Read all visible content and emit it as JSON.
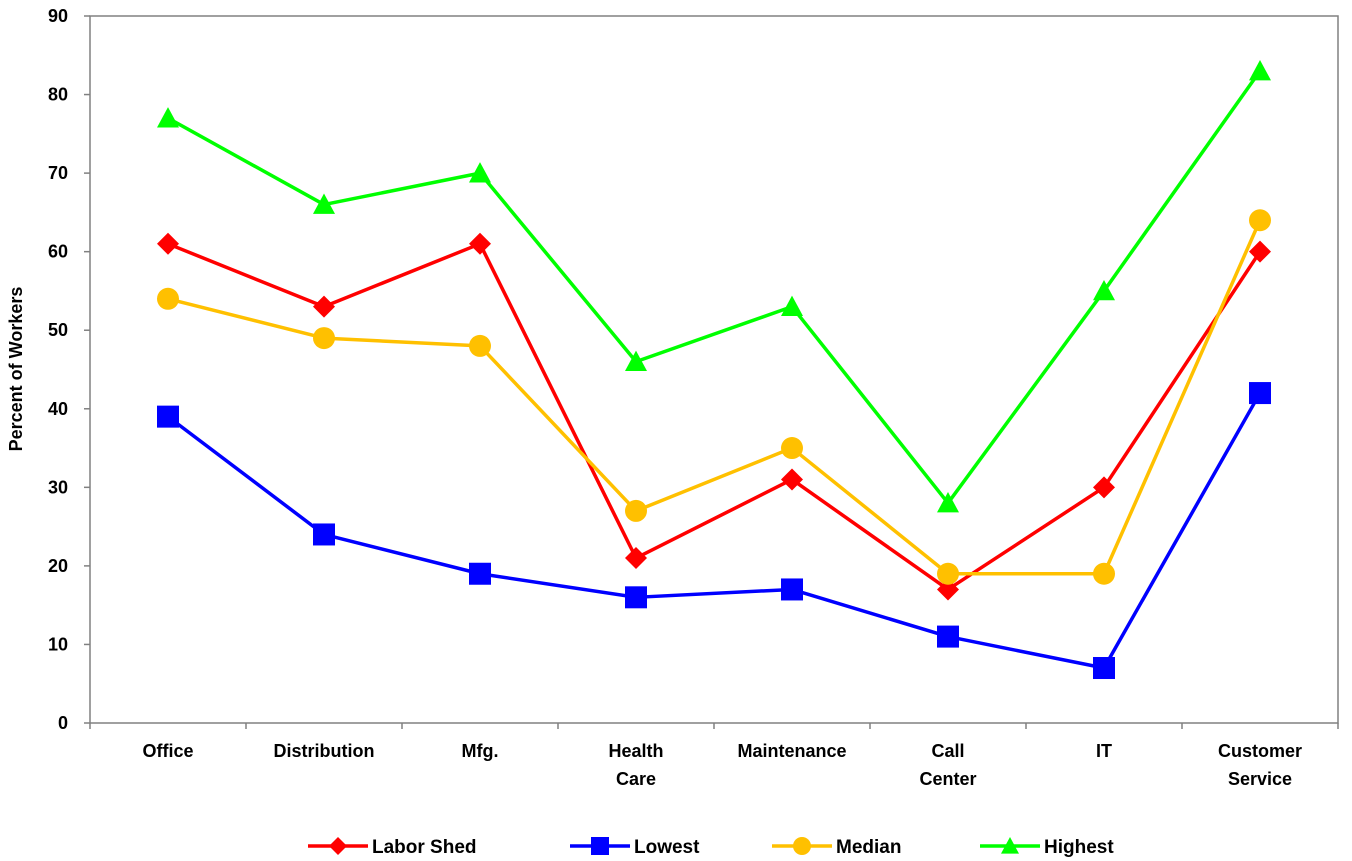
{
  "chart_data": {
    "type": "line",
    "title": "",
    "xlabel": "",
    "ylabel": "Percent of Workers",
    "ylim": [
      0,
      90
    ],
    "y_ticks": [
      "0",
      "10",
      "20",
      "30",
      "40",
      "50",
      "60",
      "70",
      "80",
      "90"
    ],
    "categories": [
      [
        "Office"
      ],
      [
        "Distribution"
      ],
      [
        "Mfg."
      ],
      [
        "Health",
        "Care"
      ],
      [
        "Maintenance"
      ],
      [
        "Call",
        "Center"
      ],
      [
        "IT"
      ],
      [
        "Customer",
        "Service"
      ]
    ],
    "grid": false,
    "legend_position": "bottom",
    "series": [
      {
        "name": "Labor Shed",
        "color": "#ff0000",
        "marker": "diamond",
        "values": [
          61,
          53,
          61,
          21,
          31,
          17,
          30,
          60
        ]
      },
      {
        "name": "Lowest",
        "color": "#0000ff",
        "marker": "square",
        "values": [
          39,
          24,
          19,
          16,
          17,
          11,
          7,
          42
        ]
      },
      {
        "name": "Median",
        "color": "#ffc000",
        "marker": "circle",
        "values": [
          54,
          49,
          48,
          27,
          35,
          19,
          19,
          64
        ]
      },
      {
        "name": "Highest",
        "color": "#00ff00",
        "marker": "triangle",
        "values": [
          77,
          66,
          70,
          46,
          53,
          28,
          55,
          83
        ]
      }
    ]
  }
}
